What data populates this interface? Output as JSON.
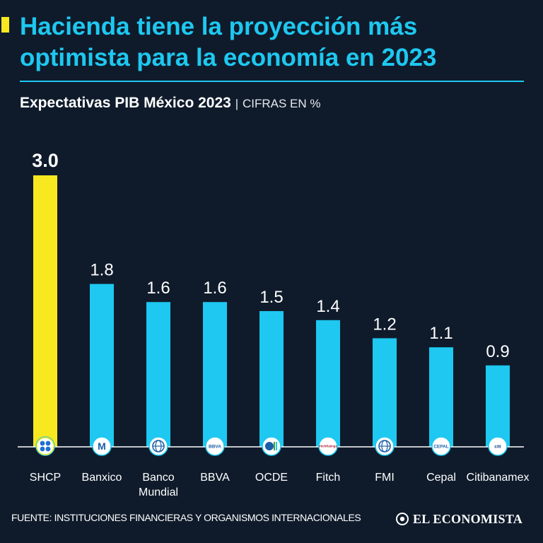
{
  "header": {
    "title": "Hacienda tiene la proyección más optimista para la economía en 2023",
    "subtitle": "Expectativas PIB México 2023",
    "separator": "|",
    "units": "CIFRAS EN %"
  },
  "colors": {
    "background": "#0f1b2b",
    "accent": "#1ec8f0",
    "highlight": "#f7e81f",
    "text": "#ffffff"
  },
  "chart_data": {
    "type": "bar",
    "title": "Expectativas PIB México 2023",
    "ylabel": "CIFRAS EN %",
    "xlabel": "",
    "categories": [
      "SHCP",
      "Banxico",
      "Banco Mundial",
      "BBVA",
      "OCDE",
      "Fitch",
      "FMI",
      "Cepal",
      "Citibanamex"
    ],
    "values": [
      3.0,
      1.8,
      1.6,
      1.6,
      1.5,
      1.4,
      1.2,
      1.1,
      0.9
    ],
    "value_labels": [
      "3.0",
      "1.8",
      "1.6",
      "1.6",
      "1.5",
      "1.4",
      "1.2",
      "1.1",
      "0.9"
    ],
    "highlight_index": 0,
    "ylim": [
      0,
      3.0
    ],
    "grid": false,
    "logos": [
      "shcp-logo",
      "banxico-logo",
      "banco-mundial-logo",
      "bbva-logo",
      "ocde-logo",
      "fitch-logo",
      "fmi-logo",
      "cepal-logo",
      "citibanamex-logo"
    ],
    "logo_text": [
      "",
      "M",
      "",
      "BBVA",
      "",
      "FitchRatings",
      "",
      "CEPAL",
      "citi"
    ]
  },
  "footer": {
    "source": "FUENTE: INSTITUCIONES FINANCIERAS Y ORGANISMOS INTERNACIONALES",
    "brand": "EL ECONOMISTA"
  }
}
